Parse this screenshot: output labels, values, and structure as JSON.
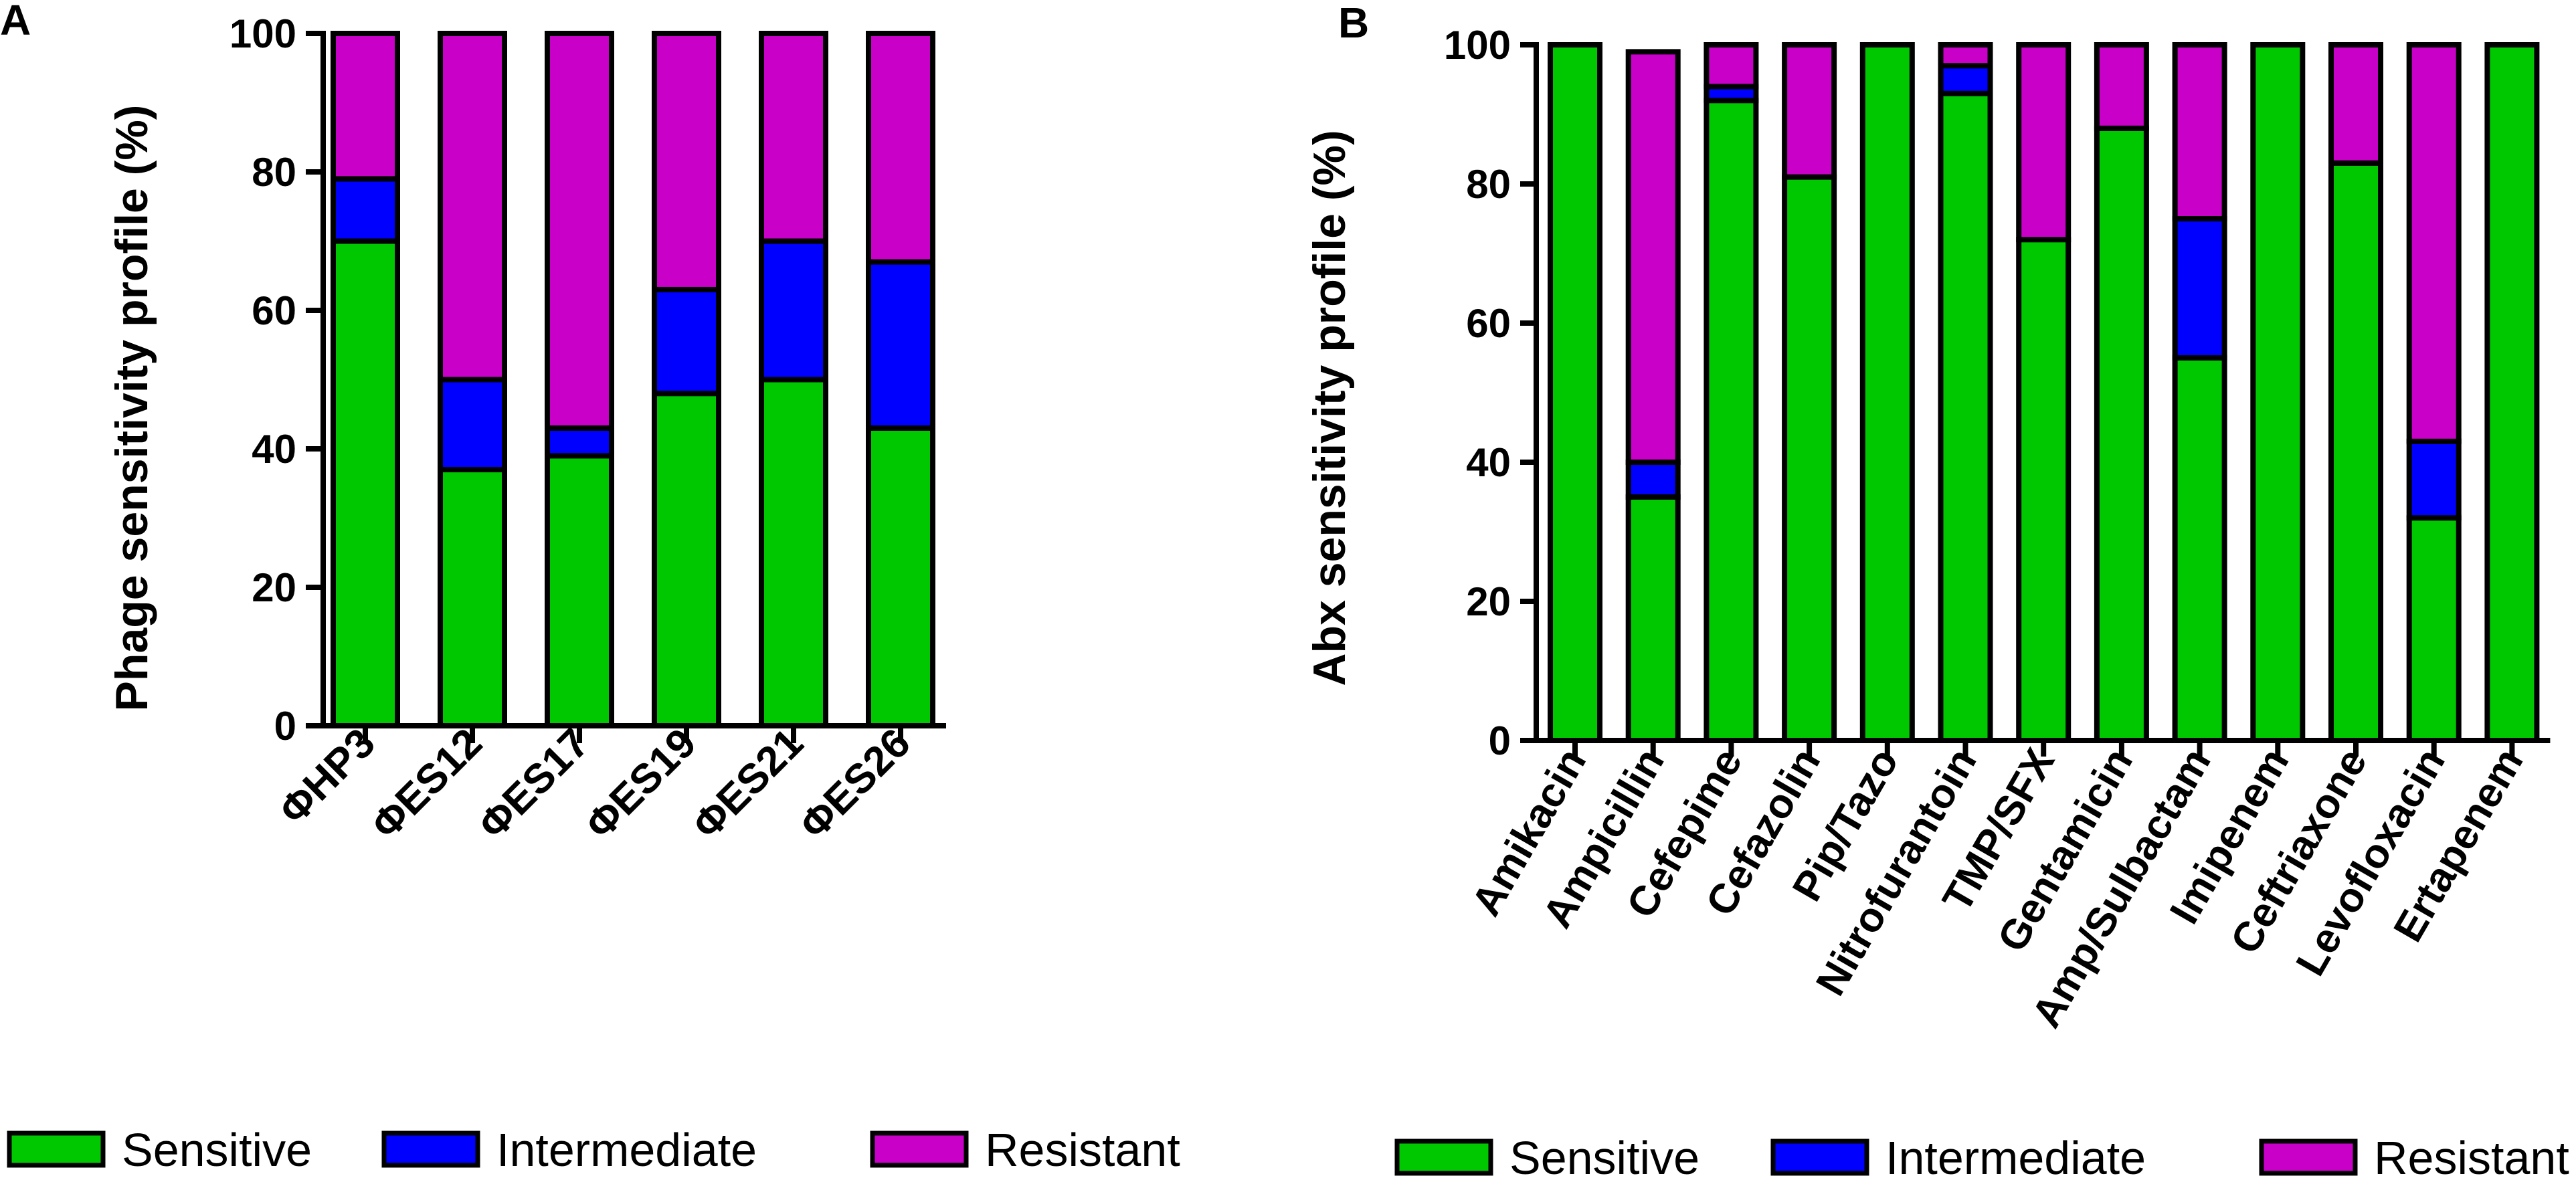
{
  "chart_data": [
    {
      "panel": "A",
      "type": "bar",
      "stacked": true,
      "title": "",
      "xlabel": "",
      "ylabel": "Phage sensitivity profile (%)",
      "ylim": [
        0,
        100
      ],
      "yticks": [
        "0",
        "20",
        "40",
        "60",
        "80",
        "100"
      ],
      "categories": [
        "ΦHP3",
        "ΦES12",
        "ΦES17",
        "ΦES19",
        "ΦES21",
        "ΦES26"
      ],
      "series": [
        {
          "name": "Sensitive",
          "color": "#00c800",
          "values": [
            70,
            37,
            39,
            48,
            50,
            43
          ]
        },
        {
          "name": "Intermediate",
          "color": "#0000ff",
          "values": [
            9,
            13,
            4,
            15,
            20,
            24
          ]
        },
        {
          "name": "Resistant",
          "color": "#c800c8",
          "values": [
            21,
            50,
            57,
            37,
            30,
            33
          ]
        }
      ]
    },
    {
      "panel": "B",
      "type": "bar",
      "stacked": true,
      "title": "",
      "xlabel": "",
      "ylabel": "Abx sensitivity profile (%)",
      "ylim": [
        0,
        100
      ],
      "yticks": [
        "0",
        "20",
        "40",
        "60",
        "80",
        "100"
      ],
      "categories": [
        "Amikacin",
        "Ampicillin",
        "Cefepime",
        "Cefazolin",
        "Pip/Tazo",
        "Nitrofurantoin",
        "TMP/SFX",
        "Gentamicin",
        "Amp/Sulbactam",
        "Imipenem",
        "Ceftriaxone",
        "Levofloxacin",
        "Ertapenem"
      ],
      "series": [
        {
          "name": "Sensitive",
          "color": "#00c800",
          "values": [
            100,
            35,
            92,
            81,
            100,
            93,
            72,
            88,
            55,
            100,
            83,
            32,
            100
          ]
        },
        {
          "name": "Intermediate",
          "color": "#0000ff",
          "values": [
            0,
            5,
            2,
            0,
            0,
            4,
            0,
            0,
            20,
            0,
            0,
            11,
            0
          ]
        },
        {
          "name": "Resistant",
          "color": "#c800c8",
          "values": [
            0,
            59,
            6,
            19,
            0,
            3,
            28,
            12,
            25,
            0,
            17,
            57,
            0
          ]
        }
      ]
    }
  ],
  "legend": {
    "items": [
      {
        "label": "Sensitive",
        "color": "#00c800"
      },
      {
        "label": "Intermediate",
        "color": "#0000ff"
      },
      {
        "label": "Resistant",
        "color": "#c800c8"
      }
    ]
  }
}
